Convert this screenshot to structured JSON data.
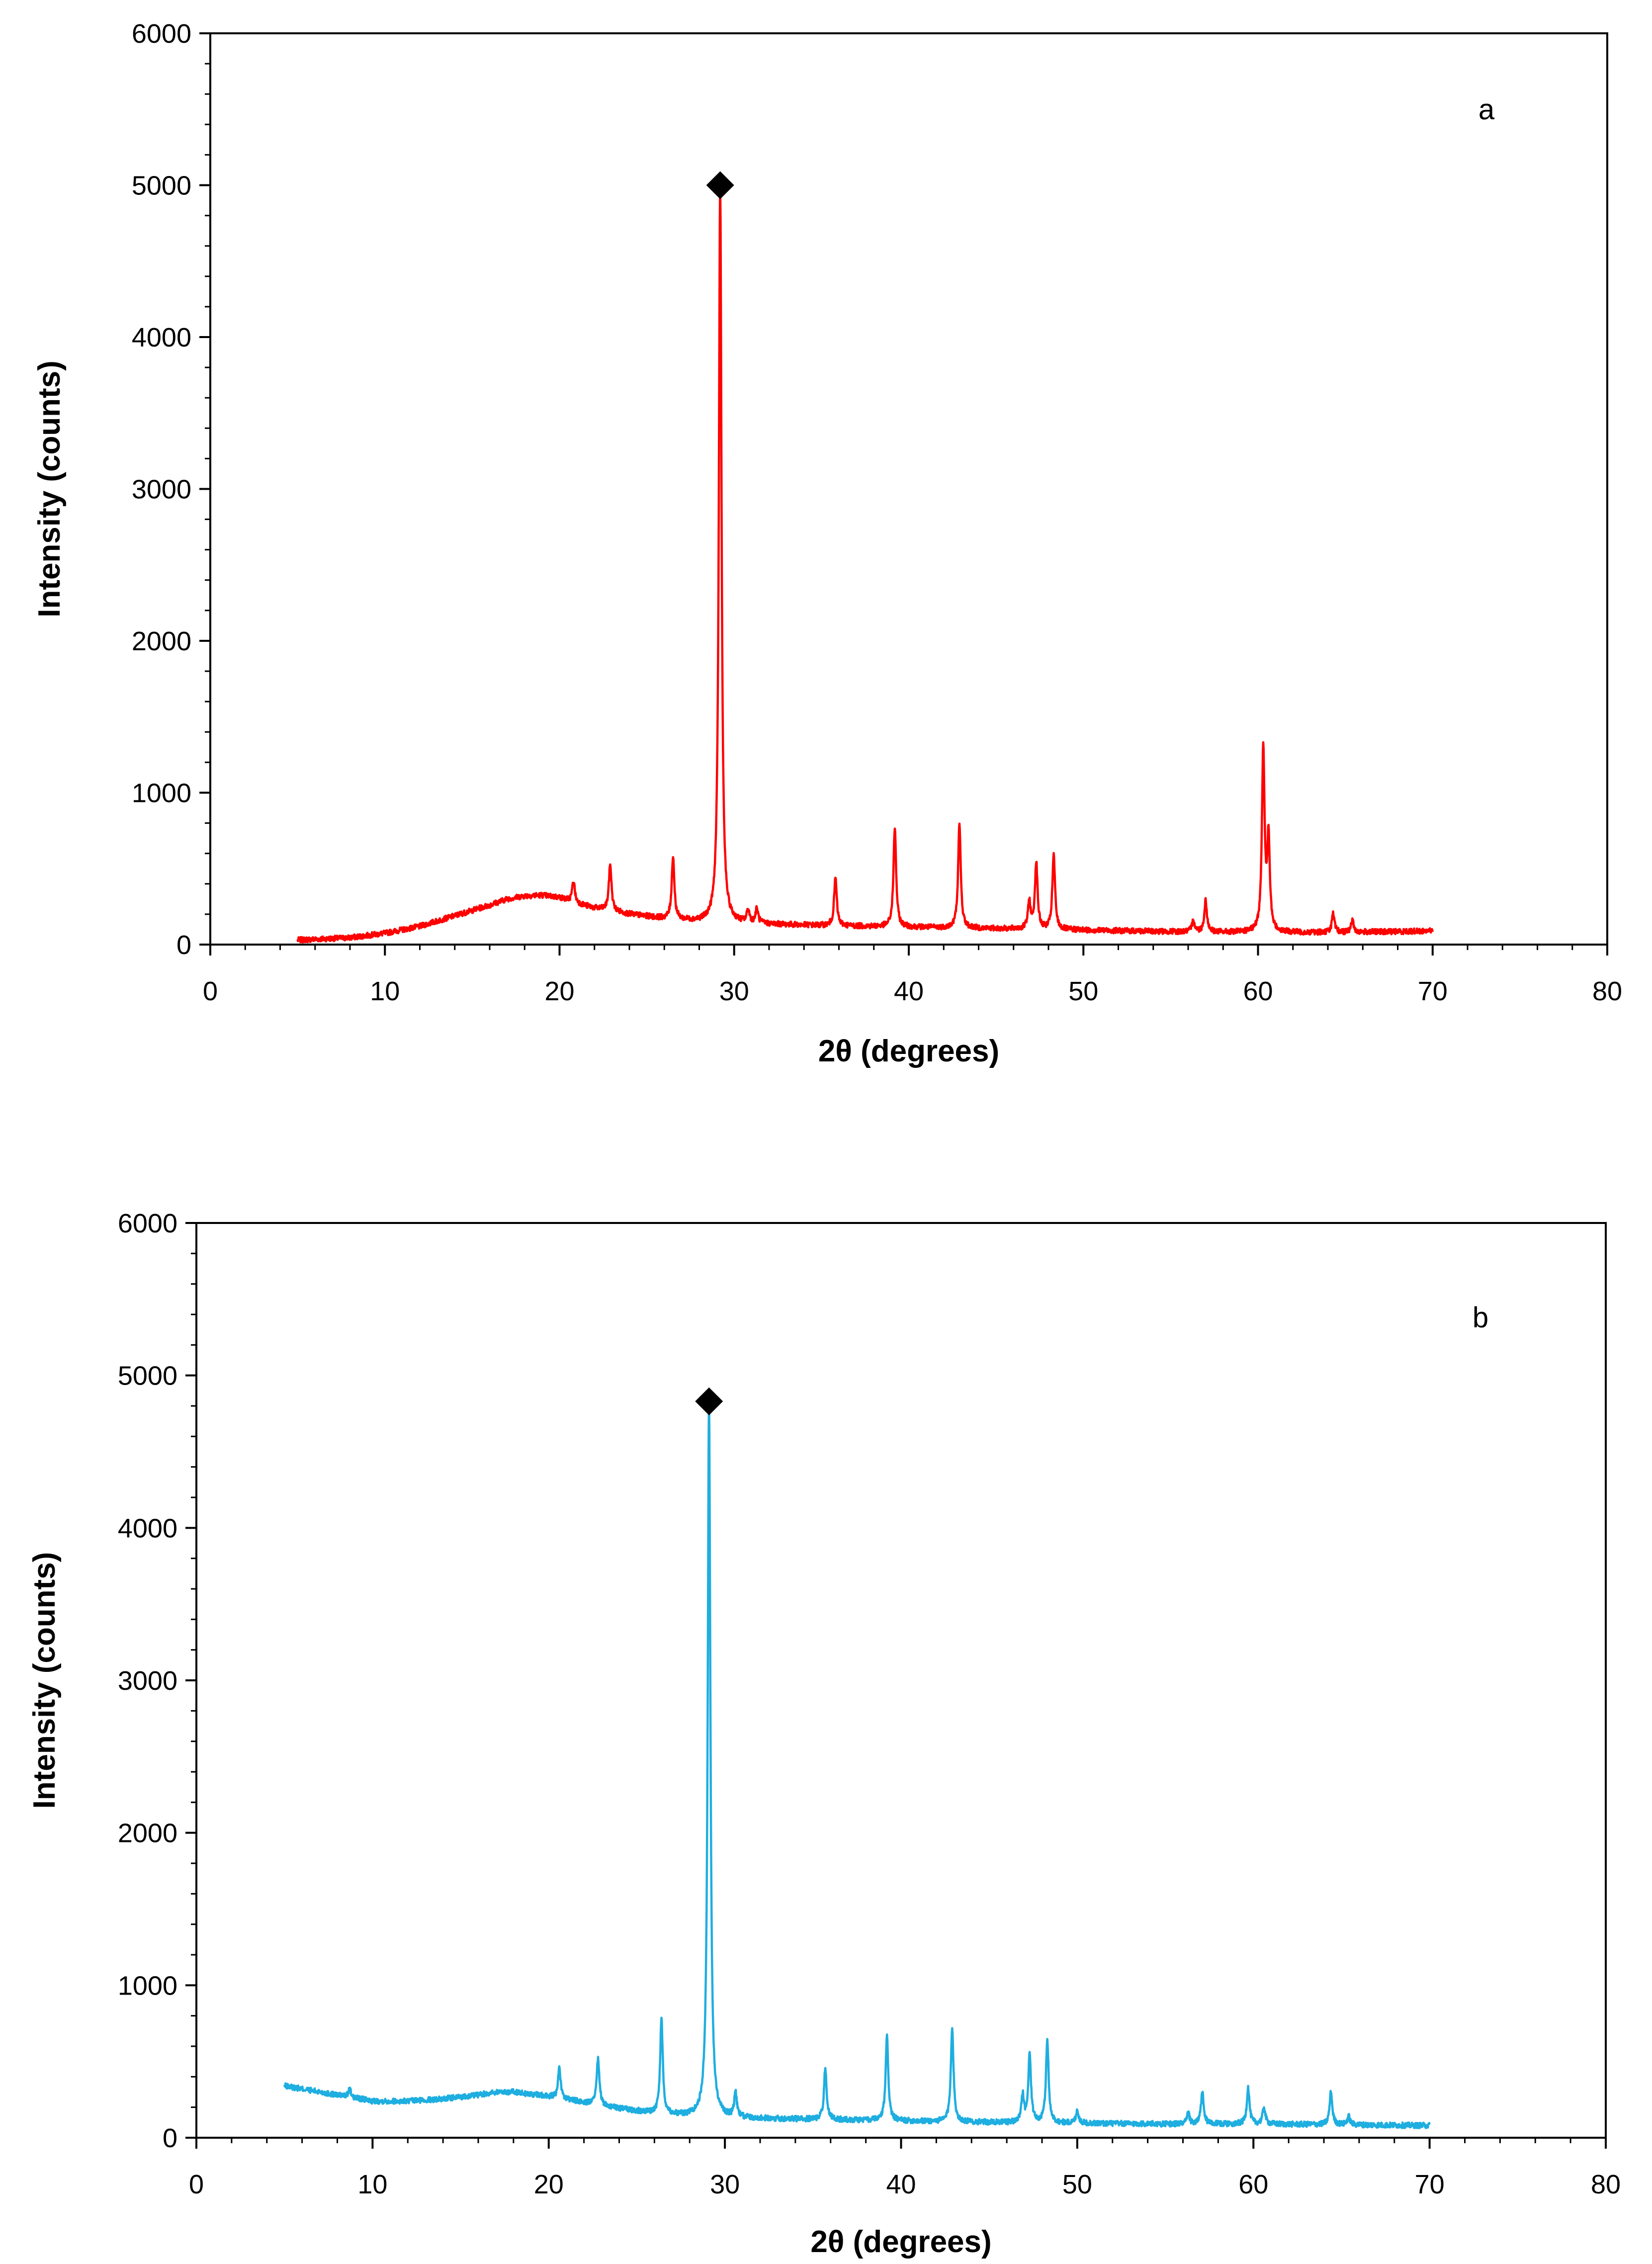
{
  "chart_data": [
    {
      "type": "line",
      "panel_label": "a",
      "xlabel": "2θ (degrees)",
      "ylabel": "Intensity (counts)",
      "xlim": [
        0,
        80
      ],
      "ylim": [
        0,
        6000
      ],
      "x_ticks": [
        "0",
        "10",
        "20",
        "30",
        "40",
        "50",
        "60",
        "70",
        "80"
      ],
      "y_ticks": [
        "0",
        "1000",
        "2000",
        "3000",
        "4000",
        "5000",
        "6000"
      ],
      "line_color": "#ff0000",
      "baseline": [
        [
          5,
          30
        ],
        [
          8,
          45
        ],
        [
          10,
          75
        ],
        [
          12,
          120
        ],
        [
          14,
          190
        ],
        [
          16,
          260
        ],
        [
          17,
          300
        ],
        [
          18,
          320
        ],
        [
          19,
          325
        ],
        [
          20,
          310
        ],
        [
          21,
          270
        ],
        [
          22,
          240
        ],
        [
          24,
          200
        ],
        [
          26,
          170
        ],
        [
          28,
          150
        ],
        [
          30,
          140
        ],
        [
          35,
          125
        ],
        [
          40,
          115
        ],
        [
          45,
          105
        ],
        [
          50,
          95
        ],
        [
          55,
          85
        ],
        [
          60,
          80
        ],
        [
          65,
          80
        ],
        [
          70,
          90
        ]
      ],
      "peaks": [
        {
          "x": 20.8,
          "y": 420
        },
        {
          "x": 22.9,
          "y": 530
        },
        {
          "x": 26.5,
          "y": 580
        },
        {
          "x": 29.2,
          "y": 5000
        },
        {
          "x": 30.8,
          "y": 220
        },
        {
          "x": 31.3,
          "y": 230
        },
        {
          "x": 35.8,
          "y": 440
        },
        {
          "x": 39.2,
          "y": 770
        },
        {
          "x": 42.9,
          "y": 790
        },
        {
          "x": 46.9,
          "y": 280
        },
        {
          "x": 47.3,
          "y": 540
        },
        {
          "x": 48.3,
          "y": 590
        },
        {
          "x": 56.3,
          "y": 160
        },
        {
          "x": 57.0,
          "y": 290
        },
        {
          "x": 60.3,
          "y": 1290
        },
        {
          "x": 60.6,
          "y": 680
        },
        {
          "x": 64.3,
          "y": 200
        },
        {
          "x": 65.4,
          "y": 160
        }
      ],
      "marker": {
        "symbol": "diamond",
        "x": 29.2,
        "y": 5000
      }
    },
    {
      "type": "line",
      "panel_label": "b",
      "xlabel": "2θ (degrees)",
      "ylabel": "Intensity (counts)",
      "xlim": [
        0,
        80
      ],
      "ylim": [
        0,
        6000
      ],
      "x_ticks": [
        "0",
        "10",
        "20",
        "30",
        "40",
        "50",
        "60",
        "70",
        "80"
      ],
      "y_ticks": [
        "0",
        "1000",
        "2000",
        "3000",
        "4000",
        "5000",
        "6000"
      ],
      "line_color": "#1eaee0",
      "baseline": [
        [
          5,
          340
        ],
        [
          7,
          300
        ],
        [
          9,
          260
        ],
        [
          10,
          240
        ],
        [
          12,
          240
        ],
        [
          14,
          255
        ],
        [
          16,
          280
        ],
        [
          17,
          300
        ],
        [
          18,
          300
        ],
        [
          20,
          270
        ],
        [
          22,
          230
        ],
        [
          24,
          190
        ],
        [
          26,
          160
        ],
        [
          28,
          140
        ],
        [
          30,
          130
        ],
        [
          35,
          120
        ],
        [
          40,
          110
        ],
        [
          45,
          100
        ],
        [
          50,
          95
        ],
        [
          55,
          90
        ],
        [
          60,
          90
        ],
        [
          65,
          85
        ],
        [
          70,
          80
        ]
      ],
      "peaks": [
        {
          "x": 8.7,
          "y": 320
        },
        {
          "x": 20.6,
          "y": 450
        },
        {
          "x": 22.8,
          "y": 520
        },
        {
          "x": 26.4,
          "y": 770
        },
        {
          "x": 29.1,
          "y": 4830
        },
        {
          "x": 30.6,
          "y": 290
        },
        {
          "x": 35.7,
          "y": 460
        },
        {
          "x": 39.2,
          "y": 660
        },
        {
          "x": 42.9,
          "y": 730
        },
        {
          "x": 46.9,
          "y": 280
        },
        {
          "x": 47.3,
          "y": 550
        },
        {
          "x": 48.3,
          "y": 640
        },
        {
          "x": 50.0,
          "y": 180
        },
        {
          "x": 56.3,
          "y": 160
        },
        {
          "x": 57.1,
          "y": 300
        },
        {
          "x": 59.7,
          "y": 330
        },
        {
          "x": 60.6,
          "y": 200
        },
        {
          "x": 64.4,
          "y": 300
        },
        {
          "x": 65.4,
          "y": 140
        }
      ],
      "marker": {
        "symbol": "diamond",
        "x": 29.1,
        "y": 4830
      }
    }
  ]
}
